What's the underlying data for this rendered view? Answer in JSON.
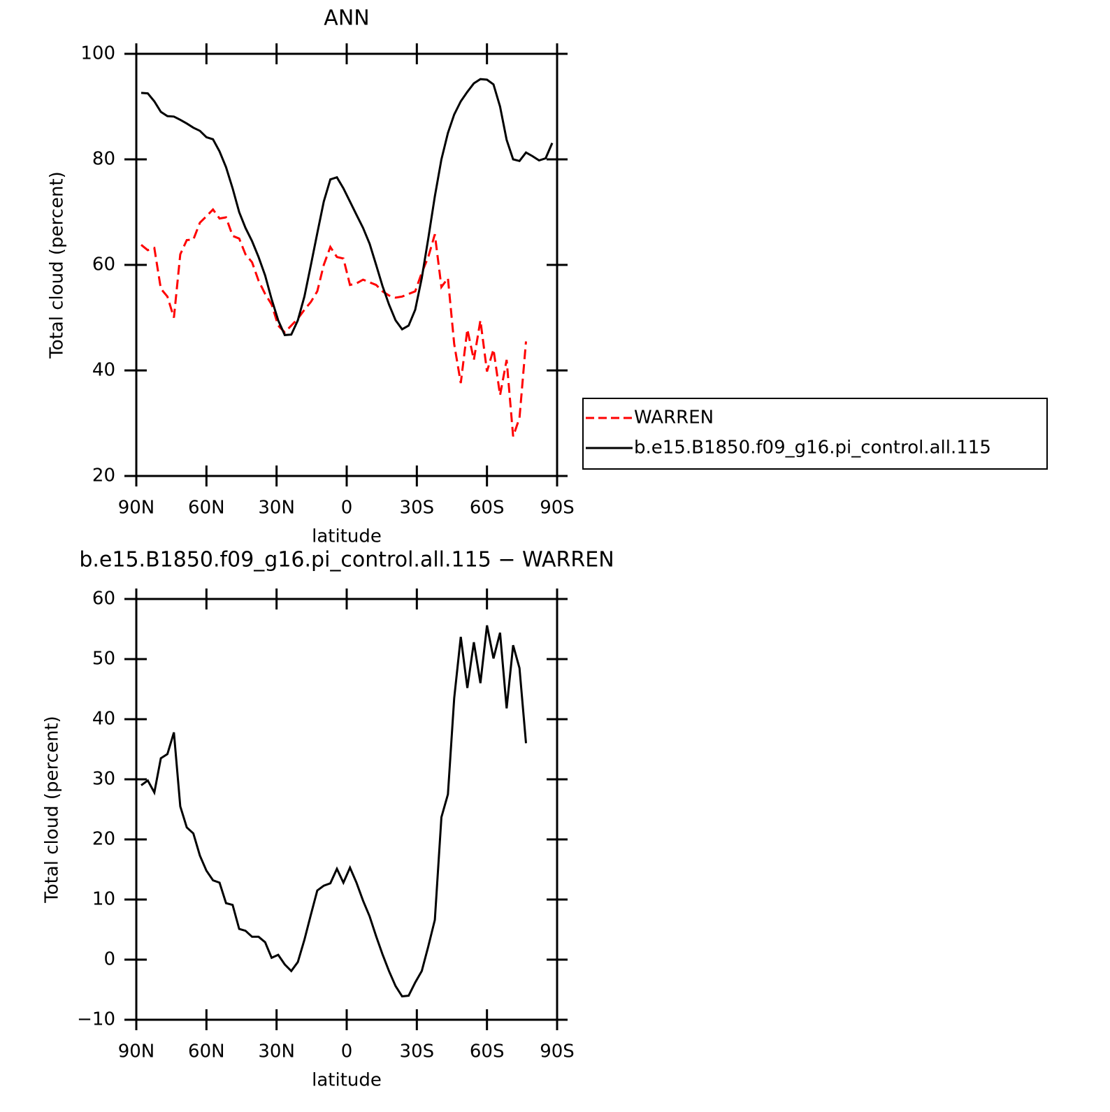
{
  "chart_data": [
    {
      "type": "line",
      "title": "ANN",
      "xlabel": "latitude",
      "ylabel": "Total cloud (percent)",
      "x": [
        87.9,
        85.1,
        82.3,
        79.5,
        76.7,
        73.9,
        71.2,
        68.4,
        65.6,
        62.8,
        60.0,
        57.2,
        54.4,
        51.6,
        48.8,
        46.0,
        43.3,
        40.5,
        37.7,
        34.9,
        32.1,
        29.3,
        26.5,
        23.7,
        20.9,
        18.1,
        15.3,
        12.6,
        9.8,
        7.0,
        4.2,
        1.4,
        -1.4,
        -4.2,
        -7.0,
        -9.8,
        -12.6,
        -15.3,
        -18.1,
        -20.9,
        -23.7,
        -26.5,
        -29.3,
        -32.1,
        -34.9,
        -37.7,
        -40.5,
        -43.3,
        -46.0,
        -48.8,
        -51.6,
        -54.4,
        -57.2,
        -60.0,
        -62.8,
        -65.6,
        -68.4,
        -71.2,
        -73.9,
        -76.7,
        -79.5,
        -82.3,
        -85.1,
        -87.9
      ],
      "series": [
        {
          "name": "WARREN",
          "color": "#ff0000",
          "line_style": "dashed",
          "values": [
            63.8,
            62.8,
            63.2,
            55.5,
            54,
            50,
            62,
            64.7,
            64.8,
            68,
            69.2,
            70.5,
            68.8,
            69,
            65.5,
            65,
            62,
            60.5,
            57,
            54.5,
            52.5,
            48.5,
            47.2,
            48.5,
            49.8,
            51.5,
            53,
            55,
            60,
            63.4,
            61.5,
            61.2,
            56.2,
            56.5,
            57.2,
            56.7,
            56.2,
            55,
            54.2,
            53.8,
            54,
            54.5,
            55,
            58.5,
            61.5,
            65.8,
            55.8,
            57.5,
            45,
            37.6,
            47.8,
            42,
            49.5,
            39.8,
            44,
            35.3,
            42,
            27.5,
            31,
            45.5,
            null,
            null,
            null,
            null
          ]
        },
        {
          "name": "b.e15.B1850.f09_g16.pi_control.all.115",
          "color": "#000000",
          "line_style": "solid",
          "values": [
            92.6,
            92.5,
            91,
            89,
            88.2,
            88.1,
            87.5,
            86.8,
            86,
            85.4,
            84.2,
            83.8,
            81.5,
            78.5,
            74.5,
            70,
            67,
            64.5,
            61.5,
            58,
            53.5,
            49.5,
            46.7,
            46.8,
            49.5,
            54,
            60,
            66,
            72,
            76.2,
            76.6,
            74.5,
            72,
            69.5,
            67,
            64,
            60,
            56,
            52.5,
            49.5,
            47.8,
            48.5,
            51.5,
            57.5,
            65,
            73,
            80,
            85,
            88.5,
            91,
            92.8,
            94.4,
            95.2,
            95.1,
            94.2,
            90,
            83.7,
            80,
            79.7,
            81.3,
            80.6,
            79.8,
            80.2,
            83.1
          ]
        }
      ],
      "xlim": [
        90,
        -90
      ],
      "xticks": [
        {
          "value": 90,
          "label": "90N"
        },
        {
          "value": 60,
          "label": "60N"
        },
        {
          "value": 30,
          "label": "30N"
        },
        0,
        {
          "value": -30,
          "label": "30S"
        },
        {
          "value": -60,
          "label": "60S"
        },
        {
          "value": -90,
          "label": "90S"
        }
      ],
      "ylim": [
        20,
        100
      ],
      "yticks": [
        20,
        40,
        60,
        80,
        100
      ],
      "legend": "right"
    },
    {
      "type": "line",
      "title": "b.e15.B1850.f09_g16.pi_control.all.115 − WARREN",
      "xlabel": "latitude",
      "ylabel": "Total cloud (percent)",
      "x": [
        87.9,
        85.1,
        82.3,
        79.5,
        76.7,
        73.9,
        71.2,
        68.4,
        65.6,
        62.8,
        60.0,
        57.2,
        54.4,
        51.6,
        48.8,
        46.0,
        43.3,
        40.5,
        37.7,
        34.9,
        32.1,
        29.3,
        26.5,
        23.7,
        20.9,
        18.1,
        15.3,
        12.6,
        9.8,
        7.0,
        4.2,
        1.4,
        -1.4,
        -4.2,
        -7.0,
        -9.8,
        -12.6,
        -15.3,
        -18.1,
        -20.9,
        -23.7,
        -26.5,
        -29.3,
        -32.1,
        -34.9,
        -37.7,
        -40.5,
        -43.3,
        -46.0,
        -48.8,
        -51.6,
        -54.4,
        -57.2,
        -60.0,
        -62.8,
        -65.6,
        -68.4,
        -71.2,
        -73.9,
        -76.7,
        -79.5,
        -82.3,
        -85.1,
        -87.9
      ],
      "values": [
        29,
        29.8,
        27.8,
        33.5,
        34.2,
        37.8,
        25.5,
        22,
        21,
        17.3,
        14.8,
        13.2,
        12.8,
        9.4,
        9.1,
        5.1,
        4.8,
        3.8,
        3.8,
        2.9,
        0.3,
        0.8,
        -0.8,
        -1.9,
        -0.4,
        3.3,
        7.5,
        11.5,
        12.3,
        12.7,
        15.1,
        12.8,
        15.3,
        12.8,
        9.8,
        7.2,
        3.9,
        0.9,
        -1.9,
        -4.4,
        -6.1,
        -6,
        -3.8,
        -1.9,
        2.2,
        6.6,
        23.7,
        27.5,
        43.5,
        53.7,
        45.2,
        52.8,
        46,
        55.6,
        50.1,
        54.4,
        41.8,
        52.3,
        48.5,
        36,
        null,
        null,
        null,
        null
      ],
      "color": "#000000",
      "xlim": [
        90,
        -90
      ],
      "xticks": [
        {
          "value": 90,
          "label": "90N"
        },
        {
          "value": 60,
          "label": "60N"
        },
        {
          "value": 30,
          "label": "30N"
        },
        0,
        {
          "value": -30,
          "label": "30S"
        },
        {
          "value": -60,
          "label": "60S"
        },
        {
          "value": -90,
          "label": "90S"
        }
      ],
      "ylim": [
        -10,
        60
      ],
      "yticks": [
        {
          "value": -10,
          "label": "−10"
        },
        0,
        10,
        20,
        30,
        40,
        50,
        60
      ]
    }
  ]
}
